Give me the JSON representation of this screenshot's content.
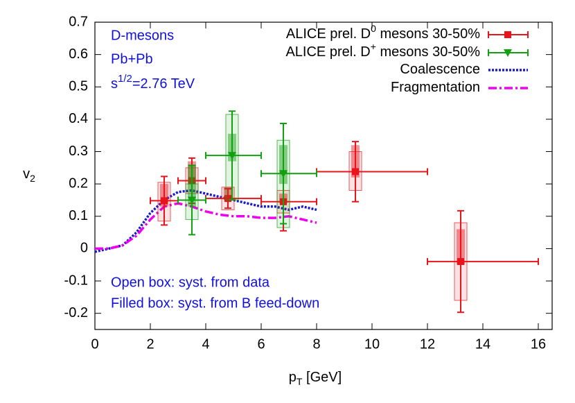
{
  "chart_data": {
    "type": "errorbar",
    "xlabel": [
      "p",
      "T",
      " [GeV]"
    ],
    "ylabel": [
      "v",
      "2"
    ],
    "xlim": [
      0,
      16.5
    ],
    "ylim": [
      -0.25,
      0.7
    ],
    "xticks": [
      0,
      2,
      4,
      6,
      8,
      10,
      12,
      14,
      16
    ],
    "yticks": [
      -0.2,
      -0.1,
      0,
      0.1,
      0.2,
      0.3,
      0.4,
      0.5,
      0.6,
      0.7
    ],
    "annotations": {
      "lines": [
        "D-mesons",
        "Pb+Pb"
      ],
      "energy": [
        "s",
        "1/2",
        "=2.76 TeV"
      ],
      "notes": [
        "Open box: syst. from data",
        "Filled box: syst. from B feed-down"
      ]
    },
    "series": [
      {
        "name": [
          "ALICE prel. D",
          "0",
          " mesons 30-50%"
        ],
        "color": "#e8141c",
        "marker": "square",
        "x": [
          2.5,
          3.5,
          4.8,
          6.8,
          9.4,
          13.2
        ],
        "x_low": [
          2,
          3,
          4,
          6,
          8,
          12
        ],
        "x_high": [
          3,
          4,
          6,
          8,
          12,
          16
        ],
        "values": [
          0.148,
          0.21,
          0.155,
          0.145,
          0.238,
          -0.04
        ],
        "yerr": [
          0.075,
          0.07,
          0.03,
          0.09,
          0.093,
          0.157
        ],
        "syst_low": [
          0.085,
          0.17,
          0.12,
          0.11,
          0.18,
          -0.16
        ],
        "syst_high": [
          0.205,
          0.25,
          0.19,
          0.18,
          0.3,
          0.08
        ],
        "feed_low": [
          0.13,
          0.2,
          0.15,
          0.14,
          0.22,
          -0.05
        ],
        "feed_high": [
          0.2,
          0.27,
          0.19,
          0.17,
          0.32,
          0.06
        ]
      },
      {
        "name": [
          "ALICE prel. D",
          "+",
          " mesons 30-50%"
        ],
        "color": "#10a010",
        "marker": "triangle",
        "x": [
          3.5,
          4.95,
          6.8
        ],
        "x_low": [
          3,
          4,
          6
        ],
        "x_high": [
          4,
          6,
          8
        ],
        "values": [
          0.15,
          0.288,
          0.232
        ],
        "yerr": [
          0.107,
          0.137,
          0.155
        ],
        "syst_low": [
          0.09,
          0.15,
          0.065
        ],
        "syst_high": [
          0.2,
          0.415,
          0.335
        ],
        "feed_low": [
          0.13,
          0.27,
          0.2
        ],
        "feed_high": [
          0.26,
          0.355,
          0.32
        ]
      },
      {
        "name": [
          "Coalescence"
        ],
        "color": "#1a1acc",
        "style": "dotted",
        "x": [
          0,
          0.5,
          1,
          1.5,
          2,
          2.5,
          3,
          3.5,
          4,
          4.5,
          5,
          5.5,
          6,
          6.5,
          7,
          7.5,
          8
        ],
        "values": [
          -0.01,
          0,
          0.01,
          0.05,
          0.11,
          0.15,
          0.175,
          0.18,
          0.17,
          0.16,
          0.15,
          0.14,
          0.13,
          0.13,
          0.12,
          0.13,
          0.12
        ]
      },
      {
        "name": [
          "Fragmentation"
        ],
        "color": "#ee00ee",
        "style": "dashdot",
        "x": [
          0,
          0.5,
          1,
          1.5,
          2,
          2.5,
          3,
          3.5,
          4,
          4.5,
          5,
          5.5,
          6,
          6.5,
          7,
          7.5,
          8
        ],
        "values": [
          0,
          0,
          0.01,
          0.04,
          0.09,
          0.13,
          0.14,
          0.13,
          0.115,
          0.105,
          0.1,
          0.1,
          0.095,
          0.095,
          0.1,
          0.09,
          0.08
        ]
      }
    ]
  }
}
